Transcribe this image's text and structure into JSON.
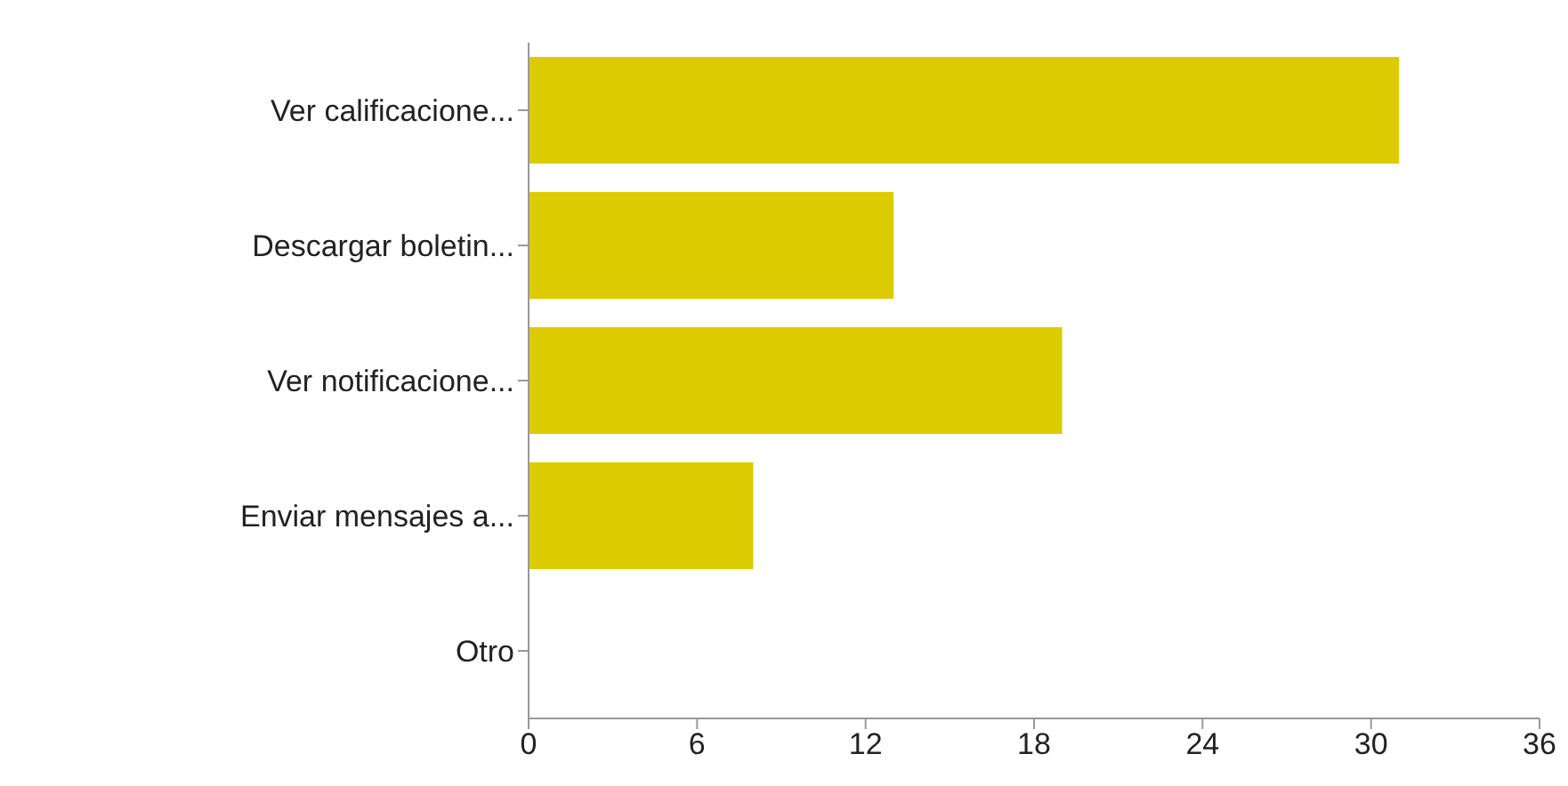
{
  "chart_data": {
    "type": "bar",
    "orientation": "horizontal",
    "categories": [
      "Ver calificacione...",
      "Descargar boletin...",
      "Ver notificacione...",
      "Enviar mensajes a...",
      "Otro"
    ],
    "values": [
      31,
      13,
      19,
      8,
      0
    ],
    "color": "#dccb00",
    "xlim": [
      0,
      36
    ],
    "xticks": [
      0,
      6,
      12,
      18,
      24,
      30,
      36
    ],
    "grid": false
  }
}
